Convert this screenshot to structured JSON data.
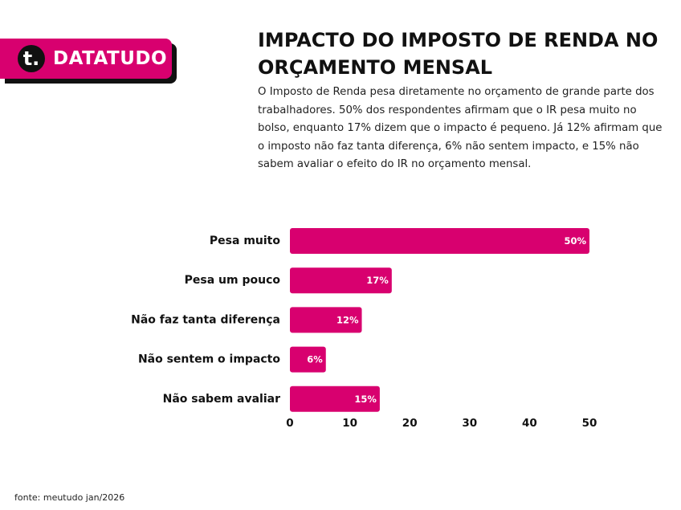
{
  "brand": {
    "logo_letter": "t.",
    "name": "DATATUDO",
    "color": "#d8006f"
  },
  "title": "IMPACTO DO IMPOSTO DE RENDA NO ORÇAMENTO MENSAL",
  "subtitle": "O Imposto de Renda pesa diretamente no orçamento de grande parte dos trabalhadores. 50% dos respondentes afirmam que o IR pesa muito no bolso, enquanto 17% dizem que o impacto é pequeno. Já 12% afirmam que o imposto não faz tanta diferença, 6% não sentem impacto, e 15% não sabem avaliar o efeito do IR no orçamento mensal.",
  "source": "fonte: meutudo jan/2026",
  "chart_data": {
    "type": "bar",
    "orientation": "horizontal",
    "categories": [
      "Pesa muito",
      "Pesa um pouco",
      "Não faz tanta diferença",
      "Não sentem o impacto",
      "Não sabem avaliar"
    ],
    "values": [
      50,
      17,
      12,
      6,
      15
    ],
    "data_labels": [
      "50%",
      "17%",
      "12%",
      "6%",
      "15%"
    ],
    "xlim": [
      0,
      50
    ],
    "xticks": [
      0,
      10,
      20,
      30,
      40,
      50
    ],
    "bar_color": "#d8006f",
    "label_color": "#ffffff",
    "grid": false
  }
}
